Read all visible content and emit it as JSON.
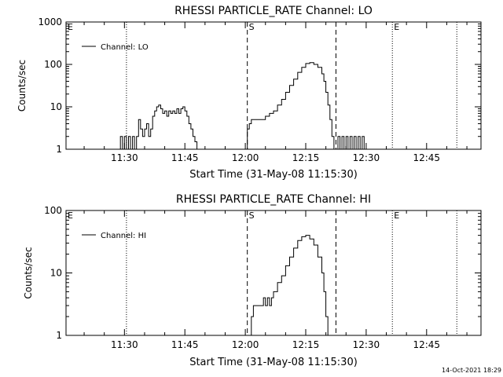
{
  "footer": {
    "timestamp": "14-Oct-2021 18:29"
  },
  "chart_data": [
    {
      "type": "line",
      "title": "RHESSI PARTICLE_RATE Channel: LO",
      "xlabel": "Start Time (31-May-08 11:15:30)",
      "ylabel": "Counts/sec",
      "xlim": [
        "11:15:30",
        "12:58:30"
      ],
      "ylim": [
        1,
        1000
      ],
      "yscale": "log",
      "xticks": [
        "11:30",
        "11:45",
        "12:00",
        "12:15",
        "12:30",
        "12:45"
      ],
      "yticks": [
        "1",
        "10",
        "100",
        "1000"
      ],
      "legend": {
        "label": "Channel: LO",
        "placement": "top-left"
      },
      "markers": [
        {
          "time": "11:15:30",
          "style": "dotted",
          "label": "E"
        },
        {
          "time": "11:30:30",
          "style": "dotted",
          "label": ""
        },
        {
          "time": "12:00:30",
          "style": "dashed",
          "label": "S"
        },
        {
          "time": "12:22:30",
          "style": "dashed",
          "label": ""
        },
        {
          "time": "12:36:30",
          "style": "dotted",
          "label": "E"
        },
        {
          "time": "12:52:30",
          "style": "dotted",
          "label": ""
        }
      ],
      "series": [
        {
          "segments": [
            [
              [
                "11:28:30",
                1
              ],
              [
                "11:29:00",
                2
              ],
              [
                "11:29:30",
                1
              ],
              [
                "11:30:00",
                2
              ],
              [
                "11:30:30",
                1
              ],
              [
                "11:31:00",
                2
              ],
              [
                "11:31:30",
                1
              ],
              [
                "11:32:00",
                2
              ],
              [
                "11:32:30",
                1
              ],
              [
                "11:33:00",
                2
              ],
              [
                "11:33:30",
                5
              ],
              [
                "11:34:00",
                3
              ],
              [
                "11:34:30",
                2
              ],
              [
                "11:35:00",
                3
              ],
              [
                "11:35:30",
                4
              ],
              [
                "11:36:00",
                2
              ],
              [
                "11:36:30",
                3
              ],
              [
                "11:37:00",
                6
              ],
              [
                "11:37:30",
                8
              ],
              [
                "11:38:00",
                10
              ],
              [
                "11:38:30",
                11
              ],
              [
                "11:39:00",
                9
              ],
              [
                "11:39:30",
                7
              ],
              [
                "11:40:00",
                8
              ],
              [
                "11:40:30",
                6
              ],
              [
                "11:41:00",
                8
              ],
              [
                "11:41:30",
                7
              ],
              [
                "11:42:00",
                8
              ],
              [
                "11:42:30",
                7
              ],
              [
                "11:43:00",
                9
              ],
              [
                "11:43:30",
                7
              ],
              [
                "11:44:00",
                9
              ],
              [
                "11:44:30",
                10
              ],
              [
                "11:45:00",
                8
              ],
              [
                "11:45:30",
                6
              ],
              [
                "11:46:00",
                4
              ],
              [
                "11:46:30",
                3
              ],
              [
                "11:47:00",
                2
              ],
              [
                "11:47:30",
                1.5
              ],
              [
                "11:48:00",
                1
              ]
            ],
            [
              [
                "12:00:00",
                1
              ],
              [
                "12:00:30",
                3
              ],
              [
                "12:01:00",
                4
              ],
              [
                "12:01:30",
                5
              ],
              [
                "12:02:00",
                5
              ],
              [
                "12:03:00",
                5
              ],
              [
                "12:04:00",
                5
              ],
              [
                "12:05:00",
                6
              ],
              [
                "12:06:00",
                7
              ],
              [
                "12:07:00",
                8
              ],
              [
                "12:08:00",
                11
              ],
              [
                "12:09:00",
                15
              ],
              [
                "12:10:00",
                22
              ],
              [
                "12:11:00",
                32
              ],
              [
                "12:12:00",
                45
              ],
              [
                "12:13:00",
                65
              ],
              [
                "12:14:00",
                85
              ],
              [
                "12:15:00",
                105
              ],
              [
                "12:16:00",
                110
              ],
              [
                "12:17:00",
                100
              ],
              [
                "12:18:00",
                85
              ],
              [
                "12:19:00",
                60
              ],
              [
                "12:19:30",
                40
              ],
              [
                "12:20:00",
                22
              ],
              [
                "12:20:30",
                11
              ],
              [
                "12:21:00",
                5
              ],
              [
                "12:21:30",
                2
              ],
              [
                "12:22:00",
                1
              ]
            ],
            [
              [
                "12:22:30",
                1
              ],
              [
                "12:23:00",
                2
              ],
              [
                "12:23:30",
                1
              ],
              [
                "12:24:00",
                2
              ],
              [
                "12:24:30",
                1
              ],
              [
                "12:25:00",
                2
              ],
              [
                "12:25:30",
                1
              ],
              [
                "12:26:00",
                2
              ],
              [
                "12:26:30",
                1
              ],
              [
                "12:27:00",
                2
              ],
              [
                "12:27:30",
                1
              ],
              [
                "12:28:00",
                2
              ],
              [
                "12:28:30",
                1
              ],
              [
                "12:29:00",
                2
              ],
              [
                "12:29:30",
                1
              ]
            ]
          ]
        }
      ]
    },
    {
      "type": "line",
      "title": "RHESSI PARTICLE_RATE Channel: HI",
      "xlabel": "Start Time (31-May-08 11:15:30)",
      "ylabel": "Counts/sec",
      "xlim": [
        "11:15:30",
        "12:58:30"
      ],
      "ylim": [
        1,
        100
      ],
      "yscale": "log",
      "xticks": [
        "11:30",
        "11:45",
        "12:00",
        "12:15",
        "12:30",
        "12:45"
      ],
      "yticks": [
        "1",
        "10",
        "100"
      ],
      "legend": {
        "label": "Channel: HI",
        "placement": "top-left"
      },
      "markers": [
        {
          "time": "11:15:30",
          "style": "dotted",
          "label": "E"
        },
        {
          "time": "11:30:30",
          "style": "dotted",
          "label": ""
        },
        {
          "time": "12:00:30",
          "style": "dashed",
          "label": "S"
        },
        {
          "time": "12:22:30",
          "style": "dashed",
          "label": ""
        },
        {
          "time": "12:36:30",
          "style": "dotted",
          "label": "E"
        },
        {
          "time": "12:52:30",
          "style": "dotted",
          "label": ""
        }
      ],
      "series": [
        {
          "segments": [
            [
              [
                "12:01:00",
                1
              ],
              [
                "12:01:30",
                2
              ],
              [
                "12:02:00",
                3
              ],
              [
                "12:03:00",
                3
              ],
              [
                "12:04:00",
                3
              ],
              [
                "12:04:30",
                4
              ],
              [
                "12:05:00",
                3
              ],
              [
                "12:05:30",
                4
              ],
              [
                "12:06:00",
                3
              ],
              [
                "12:06:30",
                4
              ],
              [
                "12:07:00",
                5
              ],
              [
                "12:08:00",
                7
              ],
              [
                "12:09:00",
                9
              ],
              [
                "12:10:00",
                13
              ],
              [
                "12:11:00",
                18
              ],
              [
                "12:12:00",
                25
              ],
              [
                "12:13:00",
                33
              ],
              [
                "12:14:00",
                38
              ],
              [
                "12:15:00",
                40
              ],
              [
                "12:16:00",
                35
              ],
              [
                "12:17:00",
                28
              ],
              [
                "12:18:00",
                18
              ],
              [
                "12:19:00",
                10
              ],
              [
                "12:19:30",
                5
              ],
              [
                "12:20:00",
                2
              ],
              [
                "12:20:30",
                1
              ]
            ]
          ]
        }
      ]
    }
  ]
}
